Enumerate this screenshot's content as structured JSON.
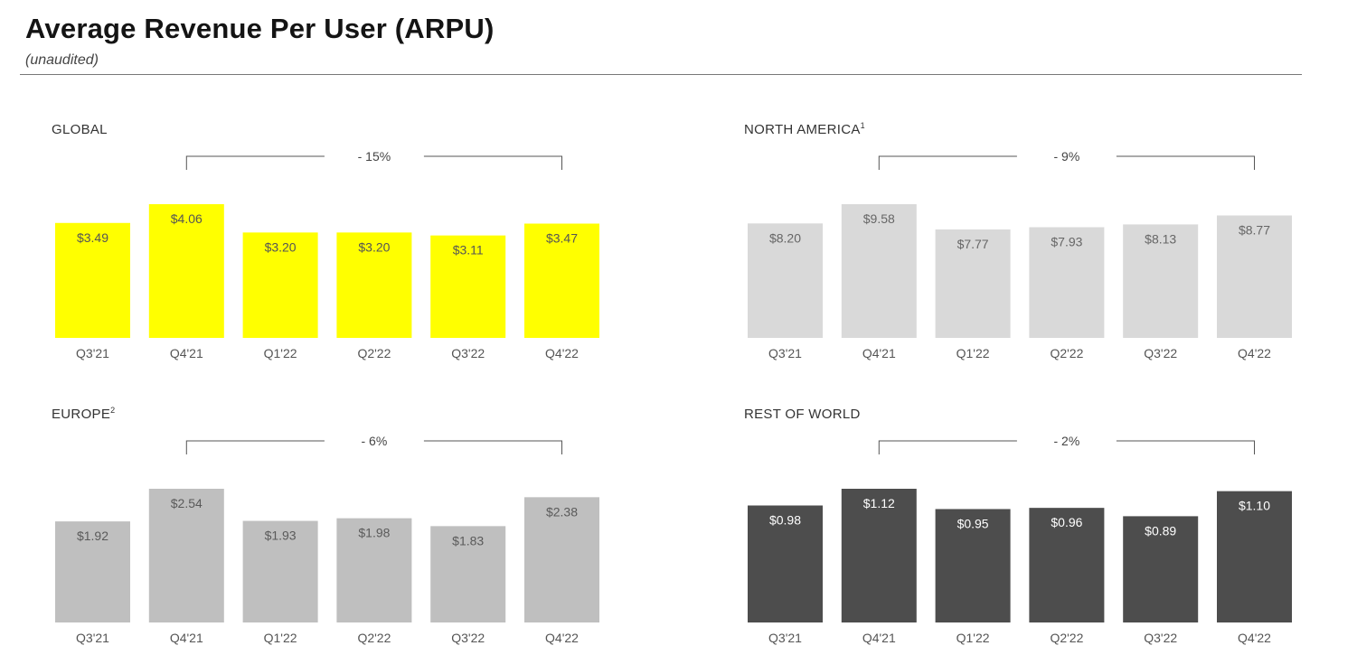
{
  "header": {
    "title": "Average Revenue Per User (ARPU)",
    "subtitle": "(unaudited)"
  },
  "colors": {
    "global_bar": "#ffff00",
    "north_america_bar": "#d9d9d9",
    "europe_bar": "#bfbfbf",
    "rest_of_world_bar": "#4d4d4d"
  },
  "chart_data": [
    {
      "id": "global",
      "type": "bar",
      "title": "GLOBAL",
      "title_footnote": "",
      "categories": [
        "Q3'21",
        "Q4'21",
        "Q1'22",
        "Q2'22",
        "Q3'22",
        "Q4'22"
      ],
      "values": [
        3.49,
        4.06,
        3.2,
        3.2,
        3.11,
        3.47
      ],
      "labels": [
        "$3.49",
        "$4.06",
        "$3.20",
        "$3.20",
        "$3.11",
        "$3.47"
      ],
      "change_label": "- 15%",
      "color": "#ffff00",
      "label_color": "#555555",
      "grid": false
    },
    {
      "id": "north-america",
      "type": "bar",
      "title": "NORTH AMERICA",
      "title_footnote": "1",
      "categories": [
        "Q3'21",
        "Q4'21",
        "Q1'22",
        "Q2'22",
        "Q3'22",
        "Q4'22"
      ],
      "values": [
        8.2,
        9.58,
        7.77,
        7.93,
        8.13,
        8.77
      ],
      "labels": [
        "$8.20",
        "$9.58",
        "$7.77",
        "$7.93",
        "$8.13",
        "$8.77"
      ],
      "change_label": "- 9%",
      "color": "#d9d9d9",
      "label_color": "#666666",
      "grid": false
    },
    {
      "id": "europe",
      "type": "bar",
      "title": "EUROPE",
      "title_footnote": "2",
      "categories": [
        "Q3'21",
        "Q4'21",
        "Q1'22",
        "Q2'22",
        "Q3'22",
        "Q4'22"
      ],
      "values": [
        1.92,
        2.54,
        1.93,
        1.98,
        1.83,
        2.38
      ],
      "labels": [
        "$1.92",
        "$2.54",
        "$1.93",
        "$1.98",
        "$1.83",
        "$2.38"
      ],
      "change_label": "- 6%",
      "color": "#bfbfbf",
      "label_color": "#5a5a5a",
      "grid": false
    },
    {
      "id": "rest-of-world",
      "type": "bar",
      "title": "REST OF WORLD",
      "title_footnote": "",
      "categories": [
        "Q3'21",
        "Q4'21",
        "Q1'22",
        "Q2'22",
        "Q3'22",
        "Q4'22"
      ],
      "values": [
        0.98,
        1.12,
        0.95,
        0.96,
        0.89,
        1.1
      ],
      "labels": [
        "$0.98",
        "$1.12",
        "$0.95",
        "$0.96",
        "$0.89",
        "$1.10"
      ],
      "change_label": "- 2%",
      "color": "#4d4d4d",
      "label_color": "#ffffff",
      "grid": false
    }
  ]
}
